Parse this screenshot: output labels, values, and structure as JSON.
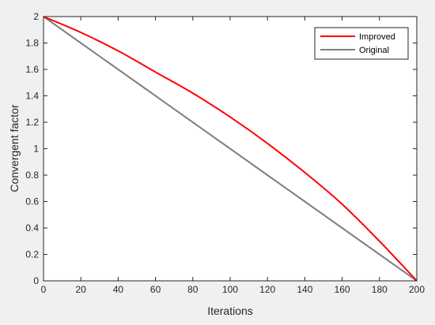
{
  "chart_data": {
    "type": "line",
    "title": "",
    "xlabel": "Iterations",
    "ylabel": "Convergent factor",
    "xlim": [
      0,
      200
    ],
    "ylim": [
      0,
      2
    ],
    "xticks": [
      0,
      20,
      40,
      60,
      80,
      100,
      120,
      140,
      160,
      180,
      200
    ],
    "yticks": [
      0,
      0.2,
      0.4,
      0.6,
      0.8,
      1,
      1.2,
      1.4,
      1.6,
      1.8,
      2
    ],
    "xtick_labels": [
      "0",
      "20",
      "40",
      "60",
      "80",
      "100",
      "120",
      "140",
      "160",
      "180",
      "200"
    ],
    "ytick_labels": [
      "0",
      "0.2",
      "0.4",
      "0.6",
      "0.8",
      "1",
      "1.2",
      "1.4",
      "1.6",
      "1.8",
      "2"
    ],
    "grid": false,
    "legend_position": "top-right",
    "series": [
      {
        "name": "Improved",
        "color": "#ff0000",
        "x": [
          0,
          20,
          40,
          60,
          80,
          100,
          120,
          140,
          160,
          180,
          200
        ],
        "y": [
          2.0,
          1.88,
          1.74,
          1.58,
          1.42,
          1.24,
          1.04,
          0.82,
          0.58,
          0.3,
          0.0
        ]
      },
      {
        "name": "Original",
        "color": "#808080",
        "x": [
          0,
          20,
          40,
          60,
          80,
          100,
          120,
          140,
          160,
          180,
          200
        ],
        "y": [
          2.0,
          1.8,
          1.6,
          1.4,
          1.2,
          1.0,
          0.8,
          0.6,
          0.4,
          0.2,
          0.0
        ]
      }
    ]
  }
}
